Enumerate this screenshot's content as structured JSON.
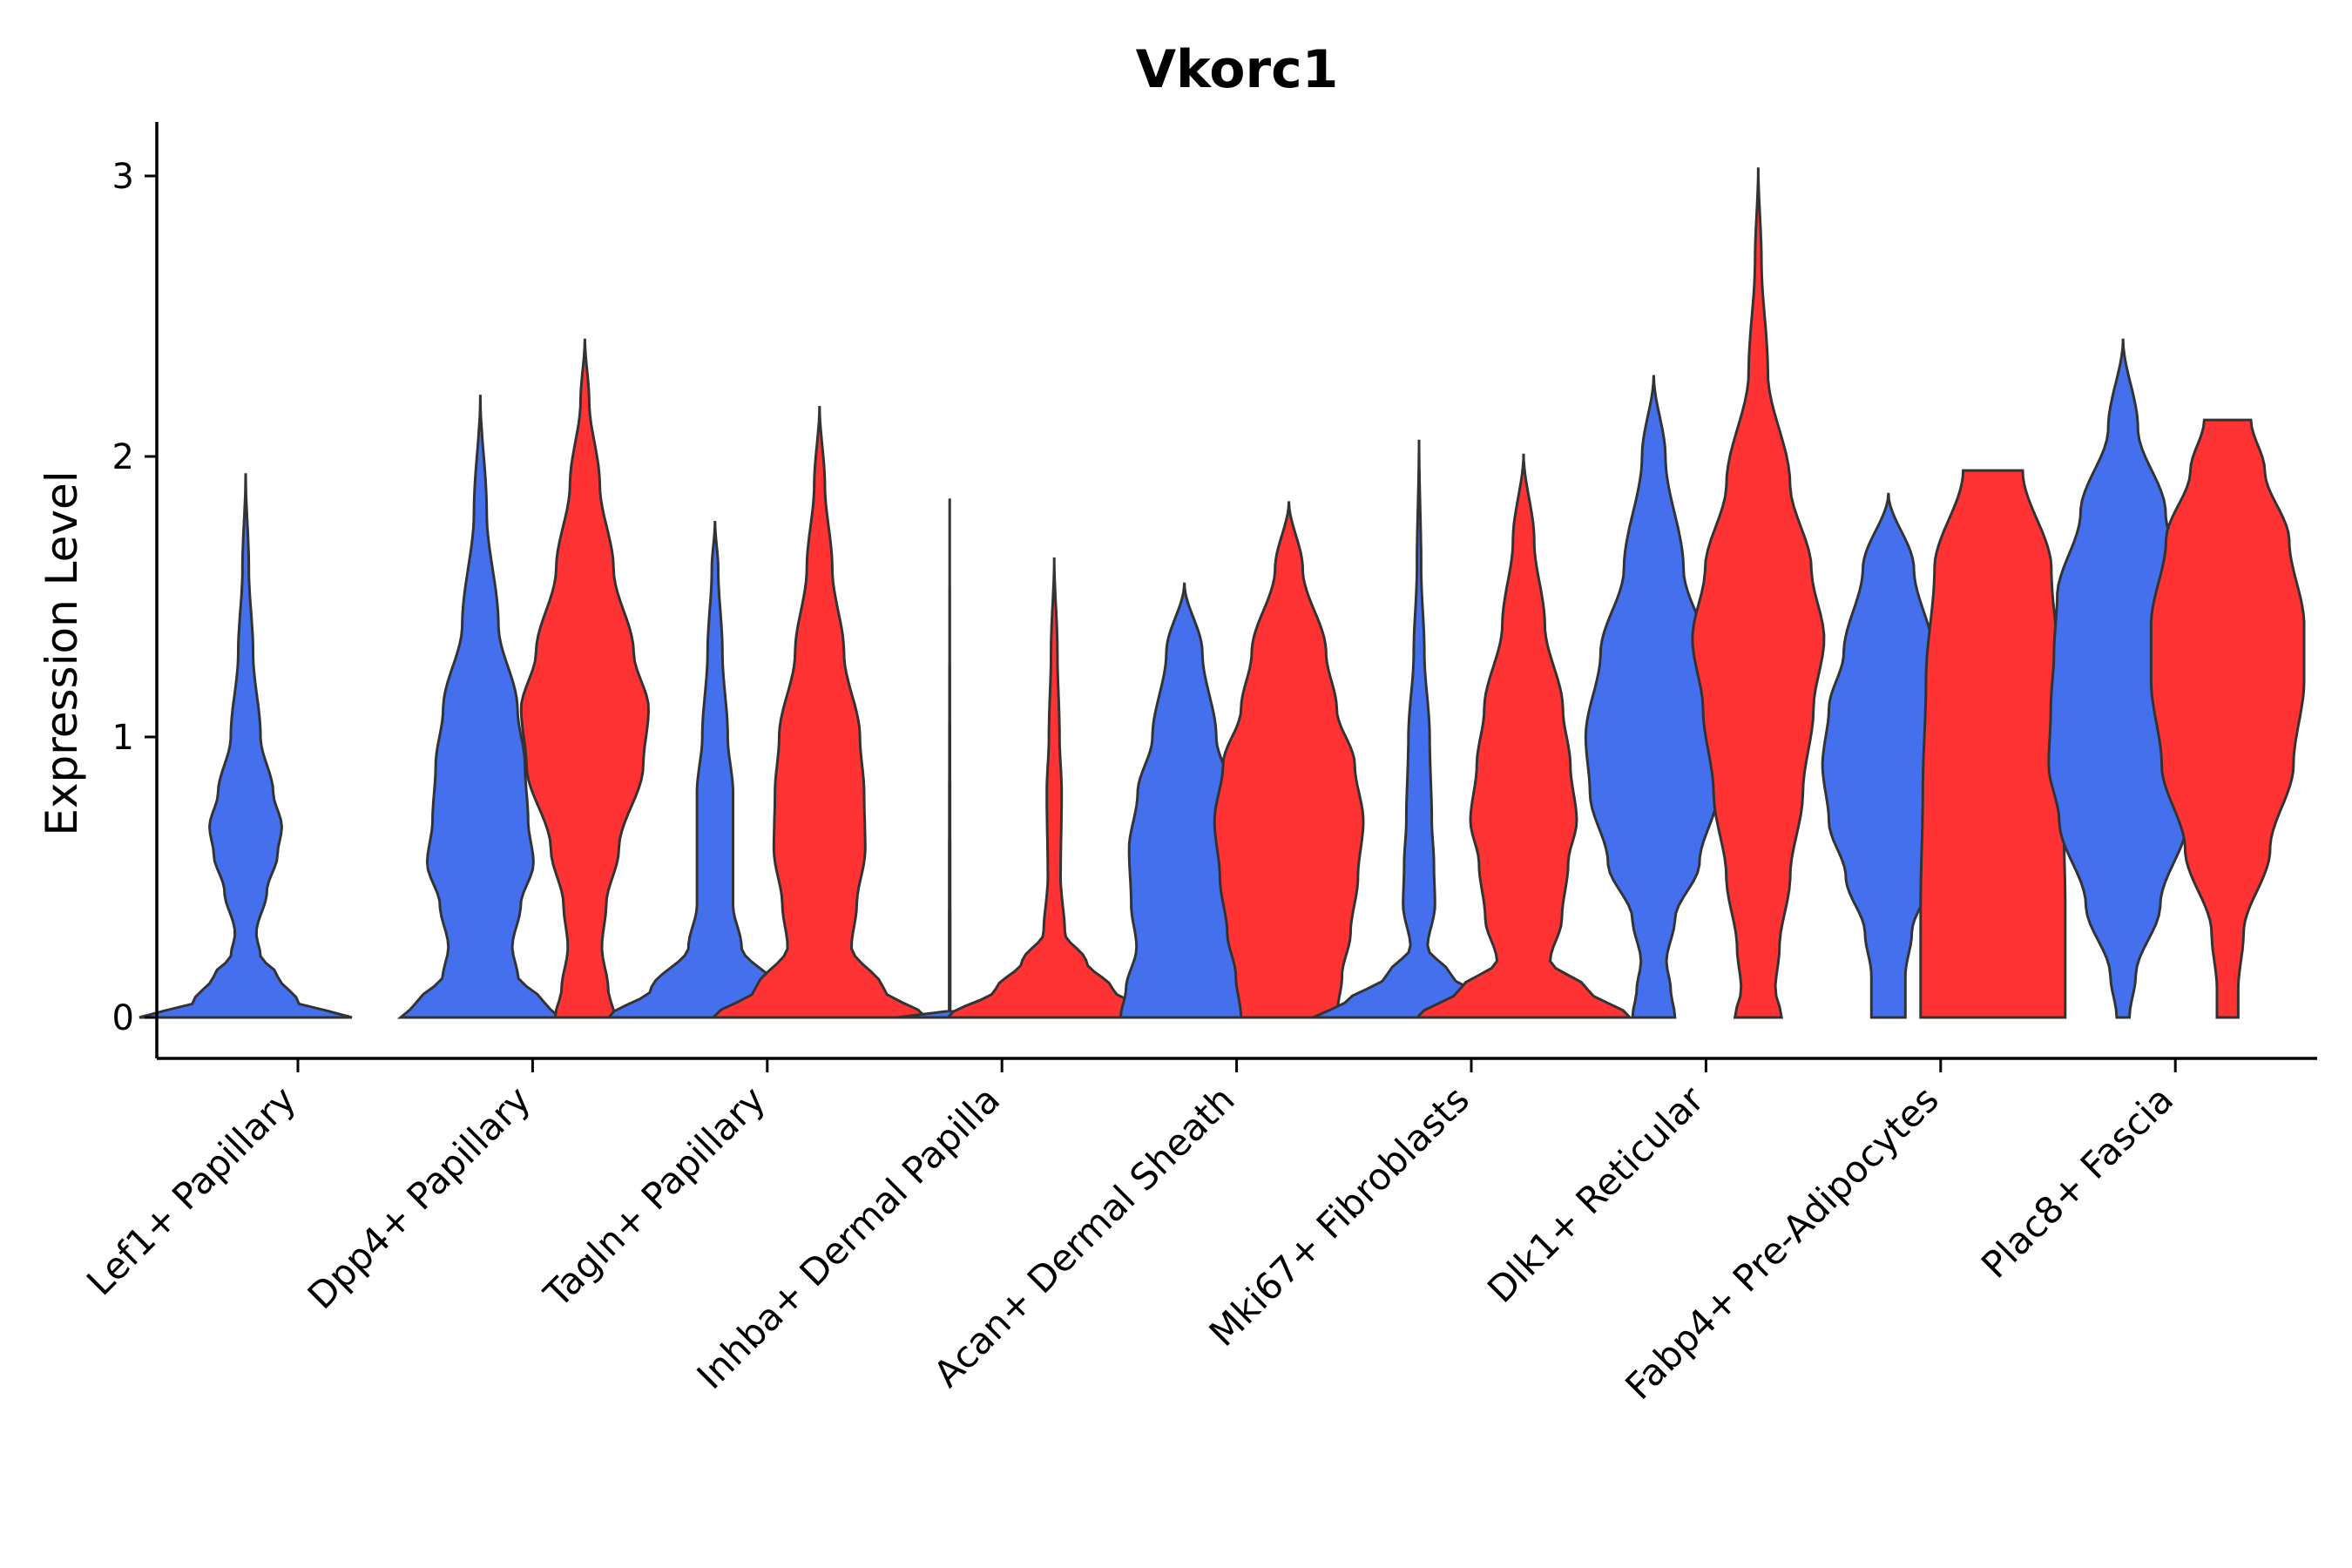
{
  "chart_data": {
    "type": "violin",
    "title": "Vkorc1",
    "xlabel": "",
    "ylabel": "Expression Level",
    "ylim": [
      -0.15,
      3.2
    ],
    "yticks": [
      0,
      1,
      2,
      3
    ],
    "legend": "none",
    "grid": false,
    "colors": {
      "group_a": "#4470EE",
      "group_b": "#FF3333",
      "outline": "#333333"
    },
    "categories": [
      "Lef1+ Papillary",
      "Dpp4+ Papillary",
      "Tagln+ Papillary",
      "Inhba+ Dermal Papilla",
      "Acan+ Dermal Sheath",
      "Mki67+ Fibroblasts",
      "Dlk1+ Reticular",
      "Fabp4+ Pre-Adipocytes",
      "Plac8+ Fascia"
    ],
    "violins": [
      {
        "category": 0,
        "group": "a",
        "max": 1.94,
        "profile": [
          [
            0,
            1.0
          ],
          [
            0.05,
            0.5
          ],
          [
            0.15,
            0.3
          ],
          [
            0.22,
            0.14
          ],
          [
            0.3,
            0.1
          ],
          [
            0.45,
            0.2
          ],
          [
            0.58,
            0.3
          ],
          [
            0.68,
            0.34
          ],
          [
            0.8,
            0.26
          ],
          [
            1.0,
            0.14
          ],
          [
            1.3,
            0.07
          ],
          [
            1.6,
            0.03
          ],
          [
            1.94,
            0.0
          ]
        ]
      },
      {
        "category": 1,
        "group": "a",
        "max": 2.22,
        "profile": [
          [
            0,
            0.75
          ],
          [
            0.05,
            0.6
          ],
          [
            0.15,
            0.35
          ],
          [
            0.25,
            0.3
          ],
          [
            0.4,
            0.38
          ],
          [
            0.55,
            0.5
          ],
          [
            0.7,
            0.45
          ],
          [
            0.9,
            0.42
          ],
          [
            1.1,
            0.35
          ],
          [
            1.4,
            0.17
          ],
          [
            1.8,
            0.06
          ],
          [
            2.22,
            0.0
          ]
        ]
      },
      {
        "category": 1,
        "group": "b",
        "max": 2.42,
        "profile": [
          [
            0,
            0.28
          ],
          [
            0.1,
            0.22
          ],
          [
            0.25,
            0.16
          ],
          [
            0.4,
            0.2
          ],
          [
            0.6,
            0.32
          ],
          [
            0.9,
            0.55
          ],
          [
            1.1,
            0.6
          ],
          [
            1.3,
            0.46
          ],
          [
            1.6,
            0.27
          ],
          [
            1.9,
            0.14
          ],
          [
            2.2,
            0.04
          ],
          [
            2.42,
            0.0
          ]
        ]
      },
      {
        "category": 2,
        "group": "a",
        "max": 1.77,
        "profile": [
          [
            0,
            1.0
          ],
          [
            0.1,
            0.6
          ],
          [
            0.25,
            0.25
          ],
          [
            0.4,
            0.17
          ],
          [
            0.6,
            0.17
          ],
          [
            0.8,
            0.17
          ],
          [
            1.0,
            0.12
          ],
          [
            1.3,
            0.07
          ],
          [
            1.6,
            0.03
          ],
          [
            1.77,
            0.0
          ]
        ]
      },
      {
        "category": 2,
        "group": "b",
        "max": 2.18,
        "profile": [
          [
            0,
            1.0
          ],
          [
            0.1,
            0.6
          ],
          [
            0.25,
            0.3
          ],
          [
            0.4,
            0.35
          ],
          [
            0.6,
            0.43
          ],
          [
            0.8,
            0.42
          ],
          [
            1.0,
            0.38
          ],
          [
            1.3,
            0.23
          ],
          [
            1.6,
            0.12
          ],
          [
            1.9,
            0.05
          ],
          [
            2.18,
            0.0
          ]
        ]
      },
      {
        "category": 3,
        "group": "a",
        "max": 1.85,
        "profile": [
          [
            0,
            0.5
          ],
          [
            0.01,
            0.05
          ],
          [
            0.02,
            0.005
          ],
          [
            1.85,
            0.0
          ]
        ]
      },
      {
        "category": 3,
        "group": "b",
        "max": 1.64,
        "profile": [
          [
            0,
            1.0
          ],
          [
            0.1,
            0.55
          ],
          [
            0.2,
            0.3
          ],
          [
            0.3,
            0.1
          ],
          [
            0.5,
            0.06
          ],
          [
            0.8,
            0.07
          ],
          [
            1.0,
            0.05
          ],
          [
            1.3,
            0.03
          ],
          [
            1.64,
            0.0
          ]
        ]
      },
      {
        "category": 4,
        "group": "a",
        "max": 1.55,
        "profile": [
          [
            0,
            0.6
          ],
          [
            0.1,
            0.55
          ],
          [
            0.25,
            0.45
          ],
          [
            0.4,
            0.5
          ],
          [
            0.6,
            0.52
          ],
          [
            0.8,
            0.44
          ],
          [
            1.0,
            0.3
          ],
          [
            1.3,
            0.17
          ],
          [
            1.55,
            0.0
          ]
        ]
      },
      {
        "category": 4,
        "group": "b",
        "max": 1.84,
        "profile": [
          [
            0,
            0.45
          ],
          [
            0.15,
            0.5
          ],
          [
            0.3,
            0.58
          ],
          [
            0.5,
            0.65
          ],
          [
            0.7,
            0.7
          ],
          [
            0.9,
            0.62
          ],
          [
            1.1,
            0.45
          ],
          [
            1.3,
            0.35
          ],
          [
            1.6,
            0.13
          ],
          [
            1.84,
            0.0
          ]
        ]
      },
      {
        "category": 5,
        "group": "a",
        "max": 2.06,
        "profile": [
          [
            0,
            1.0
          ],
          [
            0.05,
            0.7
          ],
          [
            0.15,
            0.3
          ],
          [
            0.25,
            0.08
          ],
          [
            0.4,
            0.15
          ],
          [
            0.55,
            0.14
          ],
          [
            0.7,
            0.12
          ],
          [
            1.0,
            0.1
          ],
          [
            1.3,
            0.05
          ],
          [
            1.6,
            0.02
          ],
          [
            2.06,
            0.0
          ]
        ]
      },
      {
        "category": 5,
        "group": "b",
        "max": 2.01,
        "profile": [
          [
            0,
            1.0
          ],
          [
            0.1,
            0.6
          ],
          [
            0.2,
            0.25
          ],
          [
            0.35,
            0.36
          ],
          [
            0.55,
            0.42
          ],
          [
            0.7,
            0.5
          ],
          [
            0.9,
            0.44
          ],
          [
            1.1,
            0.37
          ],
          [
            1.4,
            0.2
          ],
          [
            1.7,
            0.1
          ],
          [
            2.01,
            0.0
          ]
        ]
      },
      {
        "category": 6,
        "group": "a",
        "max": 2.29,
        "profile": [
          [
            0,
            0.2
          ],
          [
            0.1,
            0.16
          ],
          [
            0.2,
            0.12
          ],
          [
            0.35,
            0.2
          ],
          [
            0.55,
            0.43
          ],
          [
            0.8,
            0.6
          ],
          [
            1.0,
            0.64
          ],
          [
            1.3,
            0.5
          ],
          [
            1.6,
            0.28
          ],
          [
            2.0,
            0.11
          ],
          [
            2.29,
            0.0
          ]
        ]
      },
      {
        "category": 6,
        "group": "b",
        "max": 3.03,
        "profile": [
          [
            0,
            0.22
          ],
          [
            0.1,
            0.16
          ],
          [
            0.25,
            0.2
          ],
          [
            0.5,
            0.3
          ],
          [
            0.8,
            0.42
          ],
          [
            1.1,
            0.52
          ],
          [
            1.35,
            0.62
          ],
          [
            1.6,
            0.5
          ],
          [
            1.9,
            0.3
          ],
          [
            2.3,
            0.09
          ],
          [
            2.7,
            0.03
          ],
          [
            3.03,
            0.0
          ]
        ]
      },
      {
        "category": 7,
        "group": "a",
        "max": 1.87,
        "profile": [
          [
            0,
            0.16
          ],
          [
            0.15,
            0.16
          ],
          [
            0.3,
            0.22
          ],
          [
            0.5,
            0.4
          ],
          [
            0.7,
            0.56
          ],
          [
            0.9,
            0.62
          ],
          [
            1.1,
            0.56
          ],
          [
            1.3,
            0.42
          ],
          [
            1.6,
            0.24
          ],
          [
            1.87,
            0.0
          ]
        ]
      },
      {
        "category": 7,
        "group": "b",
        "max": 1.95,
        "profile": [
          [
            0,
            0.68
          ],
          [
            0.4,
            0.68
          ],
          [
            0.8,
            0.66
          ],
          [
            1.2,
            0.63
          ],
          [
            1.6,
            0.55
          ],
          [
            1.95,
            0.28
          ]
        ]
      },
      {
        "category": 8,
        "group": "a",
        "max": 2.42,
        "profile": [
          [
            0,
            0.06
          ],
          [
            0.15,
            0.12
          ],
          [
            0.4,
            0.35
          ],
          [
            0.7,
            0.6
          ],
          [
            0.9,
            0.7
          ],
          [
            1.1,
            0.68
          ],
          [
            1.3,
            0.65
          ],
          [
            1.5,
            0.62
          ],
          [
            1.8,
            0.4
          ],
          [
            2.1,
            0.14
          ],
          [
            2.42,
            0.0
          ]
        ]
      },
      {
        "category": 8,
        "group": "b",
        "max": 2.13,
        "profile": [
          [
            0,
            0.1
          ],
          [
            0.1,
            0.1
          ],
          [
            0.3,
            0.15
          ],
          [
            0.6,
            0.4
          ],
          [
            0.9,
            0.62
          ],
          [
            1.2,
            0.72
          ],
          [
            1.4,
            0.72
          ],
          [
            1.7,
            0.58
          ],
          [
            1.95,
            0.35
          ],
          [
            2.13,
            0.22
          ]
        ]
      }
    ]
  }
}
